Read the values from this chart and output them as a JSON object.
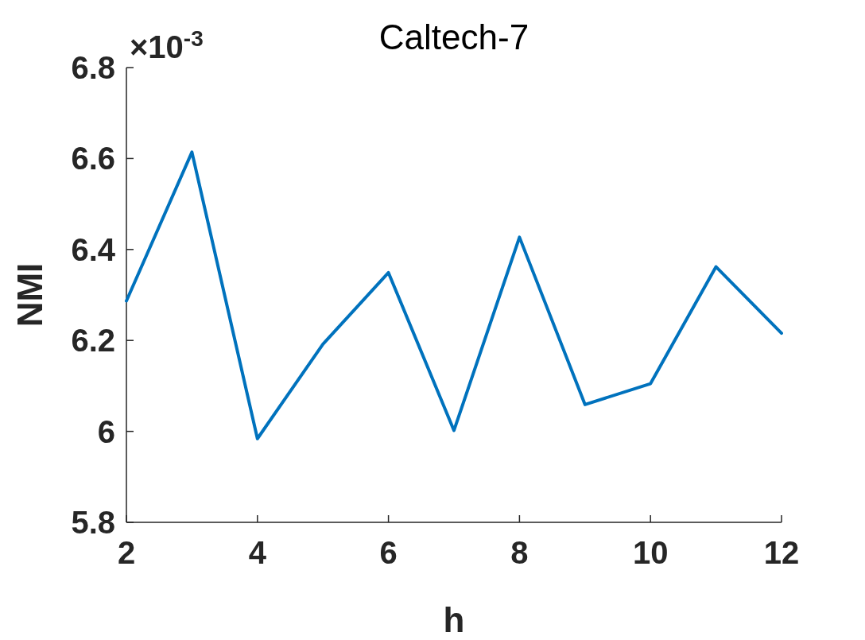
{
  "chart_data": {
    "type": "line",
    "title": "Caltech-7",
    "xlabel": "h",
    "ylabel": "NMI",
    "annotations": [
      "×10$^{-3}$"
    ],
    "x": [
      2,
      3,
      4,
      5,
      6,
      7,
      8,
      9,
      10,
      11,
      12
    ],
    "series": [
      {
        "color": "#0072bd",
        "values": [
          6.287,
          6.614,
          5.984,
          6.192,
          6.349,
          6.002,
          6.427,
          6.059,
          6.105,
          6.362,
          6.216
        ]
      }
    ],
    "xlim": [
      2,
      12
    ],
    "xticks": [
      2,
      4,
      6,
      8,
      10,
      12
    ],
    "ylim": [
      5.8,
      6.8
    ],
    "yticks": [
      5.8,
      6,
      6.2,
      6.4,
      6.6,
      6.8
    ],
    "marker": "none",
    "line_style": "solid"
  }
}
